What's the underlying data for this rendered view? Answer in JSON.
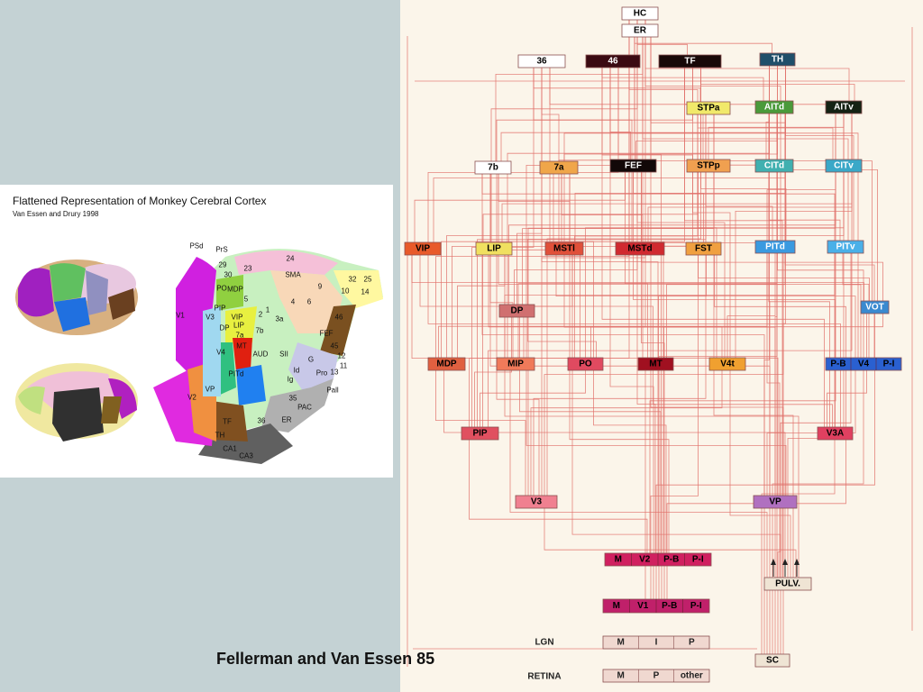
{
  "left_panel": {
    "title": "Flattened Representation of Monkey Cerebral Cortex",
    "subtitle": "Van Essen and Drury 1998",
    "map_labels": [
      "PSd",
      "PrS",
      "24",
      "29",
      "30",
      "23",
      "SMA",
      "9",
      "32",
      "25",
      "10",
      "14",
      "PO",
      "MDP",
      "5",
      "PIP",
      "V3",
      "VIP",
      "LIP",
      "DP",
      "7a",
      "2",
      "1",
      "3a",
      "4",
      "6",
      "46",
      "7b",
      "FEF",
      "45",
      "12",
      "11",
      "13",
      "Pro",
      "G",
      "Id",
      "Ig",
      "SII",
      "AUD",
      "V1",
      "V2",
      "V4",
      "MT",
      "PITd",
      "VP",
      "TF",
      "TH",
      "36",
      "35",
      "ER",
      "Pall",
      "PAC",
      "CA1",
      "CA3"
    ]
  },
  "diagram": {
    "nodes": [
      {
        "label": "HC"
      },
      {
        "label": "ER"
      },
      {
        "label": "36"
      },
      {
        "label": "46"
      },
      {
        "label": "TF"
      },
      {
        "label": "TH"
      },
      {
        "label": "STPa"
      },
      {
        "label": "AITd"
      },
      {
        "label": "AITv"
      },
      {
        "label": "7b"
      },
      {
        "label": "7a"
      },
      {
        "label": "FEF"
      },
      {
        "label": "STPp"
      },
      {
        "label": "CITd"
      },
      {
        "label": "CITv"
      },
      {
        "label": "VIP"
      },
      {
        "label": "LIP"
      },
      {
        "label": "MSTl"
      },
      {
        "label": "MSTd"
      },
      {
        "label": "FST"
      },
      {
        "label": "PITd"
      },
      {
        "label": "PITv"
      },
      {
        "label": "DP"
      },
      {
        "label": "VOT"
      },
      {
        "label": "MDP"
      },
      {
        "label": "MIP"
      },
      {
        "label": "PO"
      },
      {
        "label": "MT"
      },
      {
        "label": "V4t"
      },
      {
        "cells": [
          "P-B",
          "V4",
          "P-I"
        ]
      },
      {
        "label": "PIP"
      },
      {
        "label": "V3A"
      },
      {
        "label": "V3"
      },
      {
        "label": "VP"
      },
      {
        "cells": [
          "M",
          "V2",
          "P-B",
          "P-I"
        ]
      },
      {
        "cells": [
          "M",
          "V1",
          "P-B",
          "P-I"
        ]
      },
      {
        "label": "PULV."
      },
      {
        "label": "SC"
      }
    ],
    "lgn": {
      "label": "LGN",
      "cells": [
        "M",
        "I",
        "P"
      ]
    },
    "retina": {
      "label": "RETINA",
      "cells": [
        "M",
        "P",
        "other"
      ]
    }
  },
  "caption": "Fellerman and Van Essen 85"
}
